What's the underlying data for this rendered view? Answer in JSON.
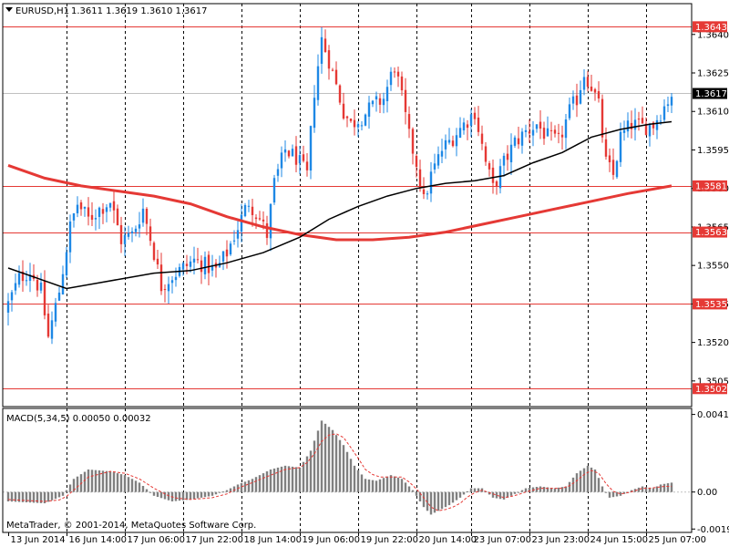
{
  "header": {
    "symbol": "EURUSD,H1",
    "ohlc": "1.3611 1.3619 1.3610 1.3617"
  },
  "indicator": {
    "label": "MACD(5,34,5) 0.00050 0.00032"
  },
  "copyright": "MetaTrader, © 2001-2014, MetaQuotes Software Corp.",
  "colors": {
    "background": "#ffffff",
    "bull": "#1e88e5",
    "bear": "#e53935",
    "level_line": "#e53935",
    "ma_slow": "#e53935",
    "ma_fast": "#000000",
    "macd_hist": "#808080",
    "macd_signal": "#e53935"
  },
  "chart_data": [
    {
      "type": "candlestick",
      "series_label": "EURUSD,H1",
      "ylim": [
        1.3495,
        1.3652
      ],
      "y_ticks": [
        "1.3640",
        "1.3625",
        "1.3610",
        "1.3595",
        "1.3580",
        "1.3565",
        "1.3550",
        "1.3535",
        "1.3520",
        "1.3505"
      ],
      "y_tick_values": [
        1.364,
        1.3625,
        1.361,
        1.3595,
        1.358,
        1.3565,
        1.355,
        1.3535,
        1.352,
        1.3505
      ],
      "x_tick_labels": [
        "13 Jun 2014",
        "16 Jun 14:00",
        "17 Jun 06:00",
        "17 Jun 22:00",
        "18 Jun 14:00",
        "19 Jun 06:00",
        "19 Jun 22:00",
        "20 Jun 14:00",
        "23 Jun 07:00",
        "23 Jun 23:00",
        "24 Jun 15:00",
        "25 Jun 07:00"
      ],
      "grid": true,
      "levels": [
        "1.3643",
        "1.3581",
        "1.3563",
        "1.3535",
        "1.3502"
      ],
      "level_values": [
        1.3643,
        1.3581,
        1.3563,
        1.3535,
        1.3502
      ],
      "current_price": "1.3617",
      "current_price_value": 1.3617,
      "bar_count": 183,
      "close_path": [
        [
          0,
          1.3535
        ],
        [
          3,
          1.3545
        ],
        [
          6,
          1.3548
        ],
        [
          9,
          1.354
        ],
        [
          11,
          1.3522
        ],
        [
          14,
          1.354
        ],
        [
          17,
          1.3565
        ],
        [
          19,
          1.3574
        ],
        [
          22,
          1.3568
        ],
        [
          25,
          1.3572
        ],
        [
          28,
          1.3575
        ],
        [
          31,
          1.356
        ],
        [
          34,
          1.3562
        ],
        [
          37,
          1.3572
        ],
        [
          40,
          1.3555
        ],
        [
          42,
          1.3542
        ],
        [
          45,
          1.3546
        ],
        [
          48,
          1.3549
        ],
        [
          51,
          1.3552
        ],
        [
          54,
          1.355
        ],
        [
          57,
          1.3548
        ],
        [
          60,
          1.3555
        ],
        [
          63,
          1.3565
        ],
        [
          66,
          1.3575
        ],
        [
          69,
          1.3568
        ],
        [
          71,
          1.3562
        ],
        [
          73,
          1.3582
        ],
        [
          76,
          1.3595
        ],
        [
          79,
          1.3592
        ],
        [
          82,
          1.3585
        ],
        [
          84,
          1.3618
        ],
        [
          86,
          1.3638
        ],
        [
          88,
          1.363
        ],
        [
          90,
          1.362
        ],
        [
          92,
          1.361
        ],
        [
          94,
          1.3605
        ],
        [
          97,
          1.3608
        ],
        [
          100,
          1.3612
        ],
        [
          103,
          1.3615
        ],
        [
          106,
          1.3628
        ],
        [
          108,
          1.3615
        ],
        [
          110,
          1.36
        ],
        [
          112,
          1.359
        ],
        [
          114,
          1.3575
        ],
        [
          116,
          1.3585
        ],
        [
          119,
          1.3595
        ],
        [
          122,
          1.36
        ],
        [
          125,
          1.3605
        ],
        [
          128,
          1.361
        ],
        [
          131,
          1.359
        ],
        [
          133,
          1.358
        ],
        [
          136,
          1.359
        ],
        [
          139,
          1.3598
        ],
        [
          142,
          1.3602
        ],
        [
          145,
          1.3605
        ],
        [
          148,
          1.36
        ],
        [
          151,
          1.3598
        ],
        [
          154,
          1.361
        ],
        [
          156,
          1.3615
        ],
        [
          158,
          1.3625
        ],
        [
          160,
          1.362
        ],
        [
          162,
          1.3612
        ],
        [
          164,
          1.359
        ],
        [
          166,
          1.3585
        ],
        [
          168,
          1.36
        ],
        [
          171,
          1.3605
        ],
        [
          174,
          1.3604
        ],
        [
          177,
          1.3605
        ],
        [
          180,
          1.3612
        ],
        [
          182,
          1.3617
        ]
      ],
      "ma_slow_path": [
        [
          0,
          1.3589
        ],
        [
          10,
          1.3584
        ],
        [
          20,
          1.3581
        ],
        [
          30,
          1.3579
        ],
        [
          40,
          1.3577
        ],
        [
          50,
          1.3574
        ],
        [
          60,
          1.3569
        ],
        [
          70,
          1.3565
        ],
        [
          80,
          1.3562
        ],
        [
          90,
          1.356
        ],
        [
          100,
          1.356
        ],
        [
          110,
          1.3561
        ],
        [
          120,
          1.3563
        ],
        [
          130,
          1.3566
        ],
        [
          140,
          1.3569
        ],
        [
          150,
          1.3572
        ],
        [
          160,
          1.3575
        ],
        [
          170,
          1.3578
        ],
        [
          182,
          1.3581
        ]
      ],
      "ma_fast_path": [
        [
          0,
          1.3549
        ],
        [
          8,
          1.3545
        ],
        [
          16,
          1.3541
        ],
        [
          24,
          1.3543
        ],
        [
          32,
          1.3545
        ],
        [
          40,
          1.3547
        ],
        [
          50,
          1.3548
        ],
        [
          60,
          1.3551
        ],
        [
          70,
          1.3555
        ],
        [
          80,
          1.3561
        ],
        [
          88,
          1.3568
        ],
        [
          96,
          1.3573
        ],
        [
          104,
          1.3577
        ],
        [
          112,
          1.358
        ],
        [
          120,
          1.3582
        ],
        [
          128,
          1.3583
        ],
        [
          136,
          1.3585
        ],
        [
          144,
          1.359
        ],
        [
          152,
          1.3594
        ],
        [
          160,
          1.36
        ],
        [
          168,
          1.3603
        ],
        [
          176,
          1.3605
        ],
        [
          182,
          1.3606
        ]
      ]
    },
    {
      "type": "histogram",
      "series_label": "MACD(5,34,5)",
      "ylim": [
        -0.00215,
        0.00445
      ],
      "y_ticks": [
        "0.00413",
        "0.00",
        "-0.00197"
      ],
      "y_tick_values": [
        0.00413,
        0.0,
        -0.00197
      ],
      "grid": true,
      "macd_path": [
        [
          0,
          -0.0005
        ],
        [
          10,
          -0.0006
        ],
        [
          15,
          -0.0002
        ],
        [
          18,
          0.0007
        ],
        [
          22,
          0.0012
        ],
        [
          28,
          0.0011
        ],
        [
          32,
          0.0009
        ],
        [
          36,
          0.0005
        ],
        [
          40,
          -0.0002
        ],
        [
          45,
          -0.0005
        ],
        [
          50,
          -0.0004
        ],
        [
          56,
          -0.0002
        ],
        [
          60,
          0.0001
        ],
        [
          63,
          0.0004
        ],
        [
          67,
          0.0007
        ],
        [
          72,
          0.0012
        ],
        [
          76,
          0.0014
        ],
        [
          80,
          0.0013
        ],
        [
          83,
          0.0022
        ],
        [
          86,
          0.0038
        ],
        [
          89,
          0.0033
        ],
        [
          92,
          0.0025
        ],
        [
          95,
          0.0014
        ],
        [
          98,
          0.0007
        ],
        [
          101,
          0.0006
        ],
        [
          105,
          0.0009
        ],
        [
          108,
          0.0007
        ],
        [
          111,
          0.0001
        ],
        [
          114,
          -0.0008
        ],
        [
          116,
          -0.0012
        ],
        [
          118,
          -0.001
        ],
        [
          121,
          -0.0007
        ],
        [
          124,
          -0.0003
        ],
        [
          127,
          0.0002
        ],
        [
          130,
          0.0002
        ],
        [
          133,
          -0.0003
        ],
        [
          136,
          -0.0004
        ],
        [
          139,
          -0.0001
        ],
        [
          142,
          0.0002
        ],
        [
          146,
          0.0003
        ],
        [
          150,
          0.0002
        ],
        [
          153,
          0.0003
        ],
        [
          156,
          0.001
        ],
        [
          159,
          0.0014
        ],
        [
          161,
          0.0012
        ],
        [
          163,
          0.0003
        ],
        [
          165,
          -0.0003
        ],
        [
          168,
          -0.0002
        ],
        [
          171,
          0.0001
        ],
        [
          174,
          0.0003
        ],
        [
          177,
          0.0002
        ],
        [
          179,
          0.0004
        ],
        [
          182,
          0.0005
        ]
      ],
      "signal_path": [
        [
          0,
          -0.0004
        ],
        [
          10,
          -0.0005
        ],
        [
          15,
          -0.0004
        ],
        [
          18,
          0.0001
        ],
        [
          22,
          0.0008
        ],
        [
          28,
          0.0011
        ],
        [
          32,
          0.001
        ],
        [
          36,
          0.0007
        ],
        [
          40,
          0.0002
        ],
        [
          45,
          -0.0003
        ],
        [
          50,
          -0.0004
        ],
        [
          56,
          -0.0003
        ],
        [
          60,
          -0.0001
        ],
        [
          63,
          0.0002
        ],
        [
          67,
          0.0005
        ],
        [
          72,
          0.0009
        ],
        [
          76,
          0.0012
        ],
        [
          80,
          0.0013
        ],
        [
          83,
          0.0017
        ],
        [
          86,
          0.0027
        ],
        [
          89,
          0.0032
        ],
        [
          92,
          0.0029
        ],
        [
          95,
          0.0021
        ],
        [
          98,
          0.0012
        ],
        [
          101,
          0.0008
        ],
        [
          105,
          0.0008
        ],
        [
          108,
          0.0008
        ],
        [
          111,
          0.0004
        ],
        [
          114,
          -0.0003
        ],
        [
          116,
          -0.0008
        ],
        [
          118,
          -0.001
        ],
        [
          121,
          -0.0009
        ],
        [
          124,
          -0.0006
        ],
        [
          127,
          -0.0001
        ],
        [
          130,
          0.0001
        ],
        [
          133,
          -0.0001
        ],
        [
          136,
          -0.0003
        ],
        [
          139,
          -0.0002
        ],
        [
          142,
          0.0
        ],
        [
          146,
          0.0002
        ],
        [
          150,
          0.0002
        ],
        [
          153,
          0.0002
        ],
        [
          156,
          0.0006
        ],
        [
          159,
          0.0011
        ],
        [
          161,
          0.0012
        ],
        [
          163,
          0.0008
        ],
        [
          165,
          0.0001
        ],
        [
          168,
          -0.0001
        ],
        [
          171,
          0.0
        ],
        [
          174,
          0.0002
        ],
        [
          177,
          0.0002
        ],
        [
          179,
          0.0003
        ],
        [
          182,
          0.0003
        ]
      ]
    }
  ]
}
